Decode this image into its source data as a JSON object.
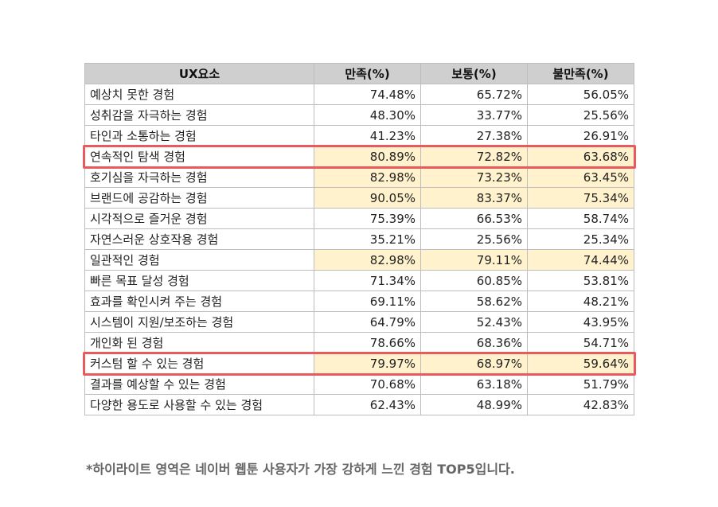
{
  "table": {
    "headers": [
      "UX요소",
      "만족(%)",
      "보통(%)",
      "불만족(%)"
    ],
    "rows": [
      {
        "name": "예상치 못한 경험",
        "values": [
          "74.48%",
          "65.72%",
          "56.05%"
        ],
        "highlight": [
          false,
          false,
          false
        ],
        "boxed": false
      },
      {
        "name": "성취감을 자극하는 경험",
        "values": [
          "48.30%",
          "33.77%",
          "25.56%"
        ],
        "highlight": [
          false,
          false,
          false
        ],
        "boxed": false
      },
      {
        "name": "타인과 소통하는 경험",
        "values": [
          "41.23%",
          "27.38%",
          "26.91%"
        ],
        "highlight": [
          false,
          false,
          false
        ],
        "boxed": false
      },
      {
        "name": "연속적인 탐색 경험",
        "values": [
          "80.89%",
          "72.82%",
          "63.68%"
        ],
        "highlight": [
          true,
          true,
          true
        ],
        "boxed": true
      },
      {
        "name": "호기심을 자극하는 경험",
        "values": [
          "82.98%",
          "73.23%",
          "63.45%"
        ],
        "highlight": [
          true,
          true,
          true
        ],
        "boxed": false
      },
      {
        "name": "브랜드에 공감하는 경험",
        "values": [
          "90.05%",
          "83.37%",
          "75.34%"
        ],
        "highlight": [
          true,
          true,
          true
        ],
        "boxed": false
      },
      {
        "name": "시각적으로 즐거운 경험",
        "values": [
          "75.39%",
          "66.53%",
          "58.74%"
        ],
        "highlight": [
          false,
          false,
          false
        ],
        "boxed": false
      },
      {
        "name": "자연스러운 상호작용 경험",
        "values": [
          "35.21%",
          "25.56%",
          "25.34%"
        ],
        "highlight": [
          false,
          false,
          false
        ],
        "boxed": false
      },
      {
        "name": "일관적인 경험",
        "values": [
          "82.98%",
          "79.11%",
          "74.44%"
        ],
        "highlight": [
          true,
          true,
          true
        ],
        "boxed": false
      },
      {
        "name": "빠른 목표 달성 경험",
        "values": [
          "71.34%",
          "60.85%",
          "53.81%"
        ],
        "highlight": [
          false,
          false,
          false
        ],
        "boxed": false
      },
      {
        "name": "효과를 확인시켜 주는 경험",
        "values": [
          "69.11%",
          "58.62%",
          "48.21%"
        ],
        "highlight": [
          false,
          false,
          false
        ],
        "boxed": false
      },
      {
        "name": "시스템이 지원/보조하는 경험",
        "values": [
          "64.79%",
          "52.43%",
          "43.95%"
        ],
        "highlight": [
          false,
          false,
          false
        ],
        "boxed": false
      },
      {
        "name": "개인화 된 경험",
        "values": [
          "78.66%",
          "68.36%",
          "54.71%"
        ],
        "highlight": [
          false,
          false,
          false
        ],
        "boxed": false
      },
      {
        "name": "커스텀 할 수 있는 경험",
        "values": [
          "79.97%",
          "68.97%",
          "59.64%"
        ],
        "highlight": [
          true,
          true,
          true
        ],
        "boxed": true
      },
      {
        "name": "결과를 예상할 수 있는 경험",
        "values": [
          "70.68%",
          "63.18%",
          "51.79%"
        ],
        "highlight": [
          false,
          false,
          false
        ],
        "boxed": false
      },
      {
        "name": "다양한 용도로 사용할 수 있는 경험",
        "values": [
          "62.43%",
          "48.99%",
          "42.83%"
        ],
        "highlight": [
          false,
          false,
          false
        ],
        "boxed": false
      }
    ]
  },
  "footnote": "*하이라이트 영역은 네이버 웹툰 사용자가 가장 강하게 느낀 경험 TOP5입니다.",
  "colors": {
    "header_bg": "#cfcfcf",
    "highlight_bg": "#fff2cc",
    "box_border": "#e85a5e",
    "grid_line": "#bdbdbd",
    "footnote_text": "#666666"
  }
}
